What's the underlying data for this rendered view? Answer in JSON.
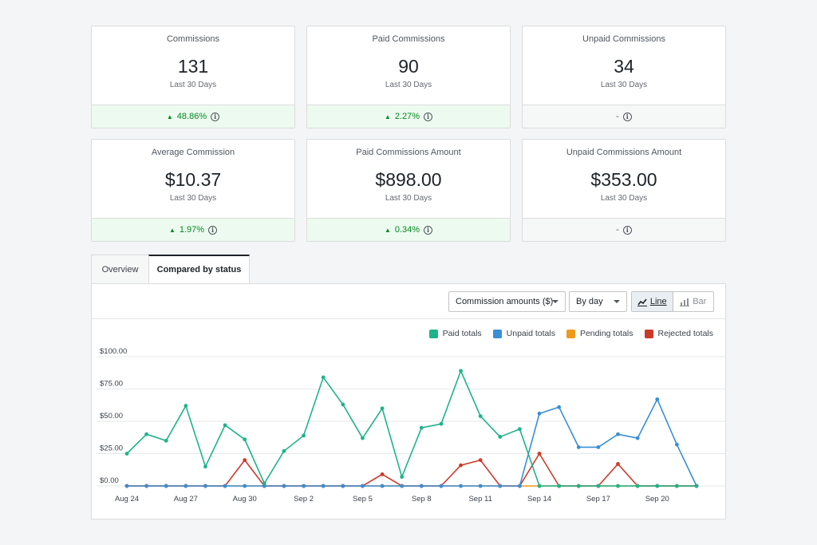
{
  "cards": [
    {
      "label": "Commissions",
      "value": "131",
      "period": "Last 30 Days",
      "change": "48.86%",
      "trend": "up"
    },
    {
      "label": "Paid Commissions",
      "value": "90",
      "period": "Last 30 Days",
      "change": "2.27%",
      "trend": "up"
    },
    {
      "label": "Unpaid Commissions",
      "value": "34",
      "period": "Last 30 Days",
      "change": "-",
      "trend": "flat"
    },
    {
      "label": "Average Commission",
      "value": "$10.37",
      "period": "Last 30 Days",
      "change": "1.97%",
      "trend": "up"
    },
    {
      "label": "Paid Commissions Amount",
      "value": "$898.00",
      "period": "Last 30 Days",
      "change": "0.34%",
      "trend": "up"
    },
    {
      "label": "Unpaid Commissions Amount",
      "value": "$353.00",
      "period": "Last 30 Days",
      "change": "-",
      "trend": "flat"
    }
  ],
  "tabs": {
    "overview": "Overview",
    "compared": "Compared by status"
  },
  "toolbar": {
    "metric_select": "Commission amounts ($)",
    "interval_select": "By day",
    "line_label": "Line",
    "bar_label": "Bar"
  },
  "colors": {
    "paid": "#1fb38a",
    "unpaid": "#3a8fd6",
    "pending": "#f09a1a",
    "rejected": "#cc3a2a",
    "up": "#008a20"
  },
  "icons": {
    "up": "triangle-up-icon",
    "info": "info-icon",
    "line": "line-chart-icon",
    "bar": "bar-chart-icon",
    "caret": "chevron-down-icon"
  },
  "chart_data": {
    "type": "line",
    "x": [
      "Aug 24",
      "Aug 25",
      "Aug 26",
      "Aug 27",
      "Aug 28",
      "Aug 29",
      "Aug 30",
      "Aug 31",
      "Sep 1",
      "Sep 2",
      "Sep 3",
      "Sep 4",
      "Sep 5",
      "Sep 6",
      "Sep 7",
      "Sep 8",
      "Sep 9",
      "Sep 10",
      "Sep 11",
      "Sep 12",
      "Sep 13",
      "Sep 14",
      "Sep 15",
      "Sep 16",
      "Sep 17",
      "Sep 18",
      "Sep 19",
      "Sep 20",
      "Sep 21",
      "Sep 22"
    ],
    "x_tick_labels": [
      "Aug 24",
      "Aug 27",
      "Aug 30",
      "Sep 2",
      "Sep 5",
      "Sep 8",
      "Sep 11",
      "Sep 14",
      "Sep 17",
      "Sep 20"
    ],
    "y_tick_labels": [
      "$0.00",
      "$25.00",
      "$50.00",
      "$75.00",
      "$100.00"
    ],
    "ylim": [
      0,
      100
    ],
    "grid": true,
    "legend_position": "top-right",
    "series": [
      {
        "name": "Paid totals",
        "color": "#1fb38a",
        "values": [
          25,
          40,
          35,
          62,
          15,
          47,
          36,
          2,
          27,
          39,
          84,
          63,
          37,
          60,
          7,
          45,
          48,
          89,
          54,
          38,
          44,
          0,
          0,
          0,
          0,
          0,
          0,
          0,
          0,
          0
        ]
      },
      {
        "name": "Unpaid totals",
        "color": "#3a8fd6",
        "values": [
          0,
          0,
          0,
          0,
          0,
          0,
          0,
          0,
          0,
          0,
          0,
          0,
          0,
          0,
          0,
          0,
          0,
          0,
          0,
          0,
          0,
          56,
          61,
          30,
          30,
          40,
          37,
          67,
          32,
          0
        ]
      },
      {
        "name": "Pending totals",
        "color": "#f09a1a",
        "values": [
          0,
          0,
          0,
          0,
          0,
          0,
          0,
          0,
          0,
          0,
          0,
          0,
          0,
          0,
          0,
          0,
          0,
          0,
          0,
          0,
          0,
          0,
          0,
          0,
          0,
          0,
          0,
          0,
          0,
          0
        ]
      },
      {
        "name": "Rejected totals",
        "color": "#cc3a2a",
        "values": [
          0,
          0,
          0,
          0,
          0,
          0,
          20,
          0,
          0,
          0,
          0,
          0,
          0,
          9,
          0,
          0,
          0,
          16,
          20,
          0,
          0,
          25,
          0,
          0,
          0,
          17,
          0,
          0,
          0,
          0
        ]
      }
    ]
  }
}
